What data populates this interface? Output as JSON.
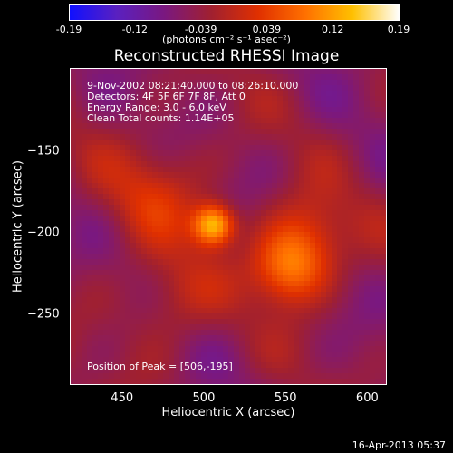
{
  "colorbar": {
    "ticks": [
      "-0.19",
      "-0.12",
      "-0.039",
      "0.039",
      "0.12",
      "0.19"
    ],
    "units": "(photons cm⁻² s⁻¹ asec⁻²)",
    "min": -0.19,
    "max": 0.19,
    "colors": [
      "#1010ff",
      "#5a20c0",
      "#7a1880",
      "#a02030",
      "#e03000",
      "#ff7000",
      "#ffc000",
      "#ffffff"
    ]
  },
  "chart_data": {
    "type": "heatmap",
    "title": "Reconstructed RHESSI Image",
    "xlabel": "Heliocentric X (arcsec)",
    "ylabel": "Heliocentric Y (arcsec)",
    "xlim": [
      418,
      612
    ],
    "ylim": [
      -293,
      -99
    ],
    "xticks": [
      450,
      500,
      550,
      600
    ],
    "yticks": [
      -150,
      -200,
      -250
    ],
    "info_lines": [
      "9-Nov-2002 08:21:40.000 to 08:26:10.000",
      "Detectors: 4F 5F 6F 7F 8F, Att 0",
      "Energy Range: 3.0 - 6.0 keV",
      "Clean     Total counts: 1.14E+05"
    ],
    "peak_label": "Position of Peak = [506,-195]",
    "peak": {
      "x": 506,
      "y": -195,
      "value": 0.19
    },
    "sources": [
      {
        "x": 506,
        "y": -195,
        "amplitude": 0.19,
        "sigma": 9
      },
      {
        "x": 552,
        "y": -222,
        "amplitude": 0.13,
        "sigma": 16
      },
      {
        "x": 565,
        "y": -200,
        "amplitude": 0.07,
        "sigma": 18
      },
      {
        "x": 470,
        "y": -175,
        "amplitude": 0.06,
        "sigma": 22
      },
      {
        "x": 480,
        "y": -240,
        "amplitude": 0.05,
        "sigma": 20
      }
    ]
  },
  "footer": {
    "timestamp": "16-Apr-2013 05:37"
  }
}
